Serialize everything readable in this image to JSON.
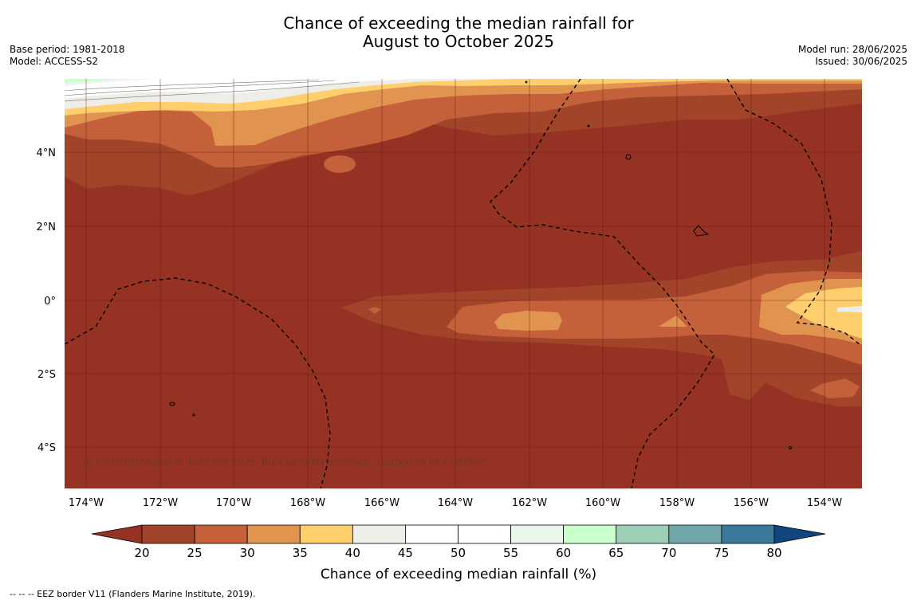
{
  "title": {
    "line1": "Chance of exceeding the median rainfall for",
    "line2": "August to October 2025"
  },
  "meta_left": {
    "base_period": "Base period: 1981-2018",
    "model": "Model: ACCESS-S2"
  },
  "meta_right": {
    "model_run": "Model run: 28/06/2025",
    "issued": "Issued: 30/06/2025"
  },
  "map": {
    "lat_labels": [
      "4°N",
      "2°N",
      "0°",
      "2°S",
      "4°S"
    ],
    "lon_labels": [
      "174°W",
      "172°W",
      "170°W",
      "168°W",
      "166°W",
      "164°W",
      "162°W",
      "160°W",
      "158°W",
      "156°W",
      "154°W"
    ],
    "copyright": "© Commonwealth of Australia 2025, Bureau of Meteorology, supported by COSPPac"
  },
  "colorbar": {
    "ticks": [
      "20",
      "25",
      "30",
      "35",
      "40",
      "45",
      "50",
      "55",
      "60",
      "65",
      "70",
      "75",
      "80"
    ],
    "colors": [
      "#a1442a",
      "#c4613a",
      "#e0944f",
      "#ffcf6d",
      "#efede8",
      "#ffffff",
      "#ffffff",
      "#e9f6e9",
      "#c9ffcb",
      "#9dcfb6",
      "#71a6a9",
      "#3c789a"
    ],
    "under_color": "#953224",
    "over_color": "#10457d",
    "label": "Chance of exceeding median rainfall (%)"
  },
  "footer": "-- -- -- EEZ border V11 (Flanders Marine Institute, 2019)."
}
